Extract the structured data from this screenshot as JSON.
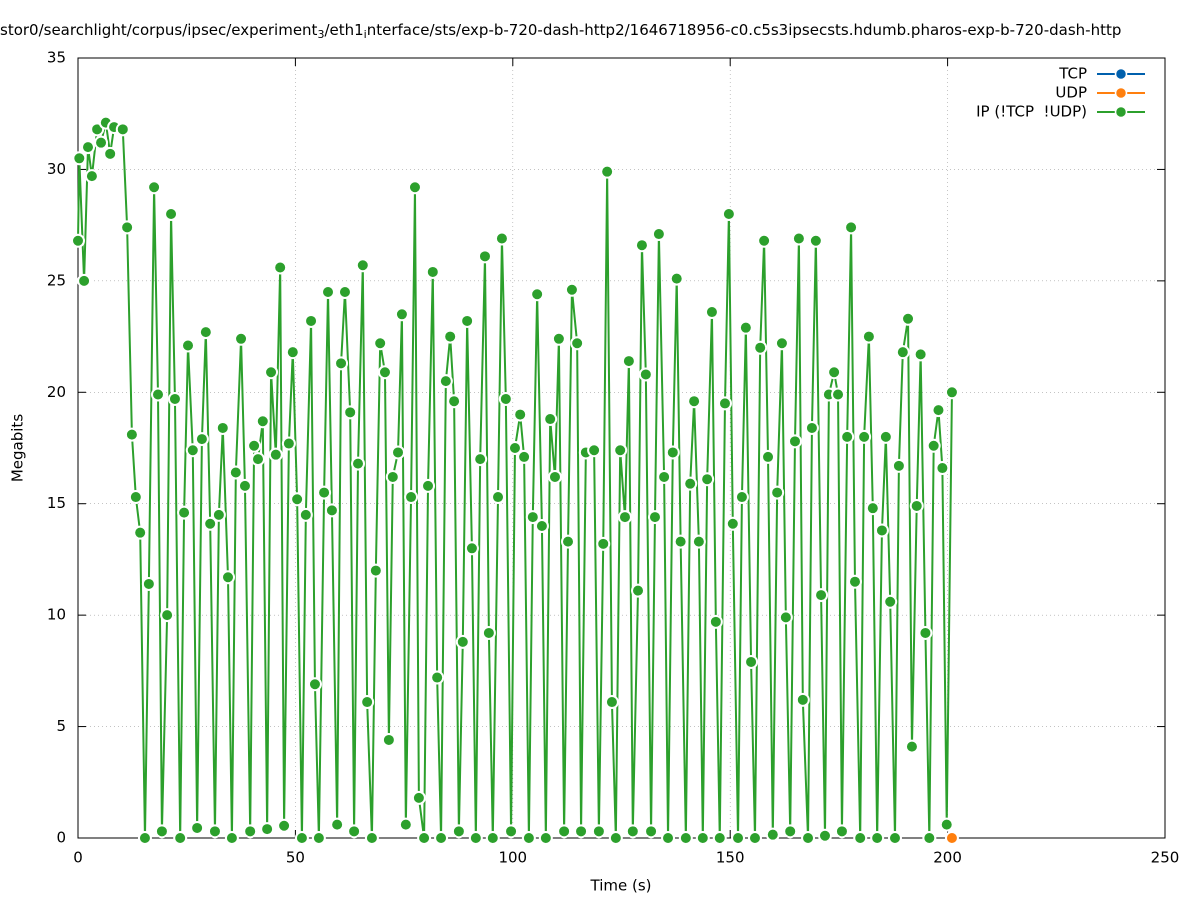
{
  "chart_data": {
    "type": "line",
    "title": [
      "stor0/searchlight/corpus/ipsec/experiment",
      "3",
      "/eth1",
      "i",
      "nterface/sts/exp-b-720-dash-http2/1646718956-c0.c5s3ipsecsts.hdumb.pharos-exp-b-720-dash-http"
    ],
    "x_label": "Time (s)",
    "y_label": "Megabits",
    "xlim": [
      0,
      250
    ],
    "xticks": [
      0,
      50,
      100,
      150,
      200,
      250
    ],
    "ylim": [
      0,
      35
    ],
    "yticks": [
      0,
      5,
      10,
      15,
      20,
      25,
      30,
      35
    ],
    "grid": true,
    "legend": "top-right",
    "series": [
      {
        "name": "TCP",
        "color": "#0060ad",
        "x": [],
        "values": []
      },
      {
        "name": "UDP",
        "color": "#ff7f0e",
        "x": [
          201.0
        ],
        "values": [
          0
        ]
      },
      {
        "name": "IP (!TCP  !UDP)",
        "color": "#2ca02c",
        "x": [
          0,
          0.3,
          1.4,
          2.3,
          3.2,
          4.4,
          5.3,
          6.4,
          7.4,
          8.3,
          10.3,
          11.3,
          12.4,
          13.3,
          14.3,
          15.4,
          16.3,
          17.5,
          18.4,
          19.3,
          20.5,
          21.4,
          22.3,
          23.5,
          24.4,
          25.3,
          26.4,
          27.4,
          28.5,
          29.4,
          30.4,
          31.5,
          32.4,
          33.3,
          34.5,
          35.4,
          36.3,
          37.5,
          38.4,
          39.6,
          40.5,
          41.4,
          42.5,
          43.5,
          44.4,
          45.5,
          46.5,
          47.4,
          48.5,
          49.4,
          50.4,
          51.5,
          52.4,
          53.6,
          54.5,
          55.4,
          56.6,
          57.5,
          58.4,
          59.6,
          60.5,
          61.4,
          62.6,
          63.5,
          64.4,
          65.5,
          66.5,
          67.6,
          68.5,
          69.5,
          70.6,
          71.5,
          72.4,
          73.6,
          74.5,
          75.4,
          76.6,
          77.5,
          78.4,
          79.6,
          80.5,
          81.6,
          82.6,
          83.5,
          84.6,
          85.6,
          86.5,
          87.6,
          88.5,
          89.5,
          90.6,
          91.5,
          92.5,
          93.6,
          94.5,
          95.4,
          96.6,
          97.5,
          98.4,
          99.6,
          100.5,
          101.7,
          102.6,
          103.7,
          104.6,
          105.6,
          106.7,
          107.6,
          108.6,
          109.7,
          110.6,
          111.8,
          112.7,
          113.6,
          114.8,
          115.7,
          116.8,
          118.7,
          119.8,
          120.8,
          121.7,
          122.8,
          123.7,
          124.7,
          125.8,
          126.7,
          127.6,
          128.8,
          129.7,
          130.6,
          131.8,
          132.7,
          133.6,
          134.8,
          135.7,
          136.8,
          137.7,
          138.6,
          139.8,
          140.8,
          141.7,
          142.8,
          143.7,
          144.7,
          145.8,
          146.7,
          147.6,
          148.8,
          149.7,
          150.6,
          151.8,
          152.7,
          153.6,
          154.8,
          155.7,
          156.9,
          157.8,
          158.7,
          159.8,
          160.8,
          161.9,
          162.8,
          163.8,
          164.9,
          165.8,
          166.7,
          167.9,
          168.8,
          169.7,
          170.9,
          171.8,
          172.7,
          173.9,
          174.8,
          175.7,
          176.9,
          177.8,
          178.7,
          179.9,
          180.8,
          181.9,
          182.8,
          183.8,
          184.9,
          185.8,
          186.8,
          187.9,
          188.8,
          189.7,
          190.9,
          191.8,
          192.9,
          193.8,
          194.9,
          195.8,
          196.8,
          197.9,
          198.8,
          199.8,
          201.0
        ],
        "values": [
          26.8,
          30.5,
          25.0,
          31.0,
          29.7,
          31.8,
          31.2,
          32.1,
          30.7,
          31.9,
          31.8,
          27.4,
          18.1,
          15.3,
          13.7,
          0,
          11.4,
          29.2,
          19.9,
          0.3,
          10.0,
          28.0,
          19.7,
          0,
          14.6,
          22.1,
          17.4,
          0.45,
          17.9,
          22.7,
          14.1,
          0.3,
          14.5,
          18.4,
          11.7,
          0,
          16.4,
          22.4,
          15.8,
          0.3,
          17.6,
          17.0,
          18.7,
          0.4,
          20.9,
          17.2,
          25.6,
          0.55,
          17.7,
          21.8,
          15.2,
          0,
          14.5,
          23.2,
          6.9,
          0,
          15.5,
          24.5,
          14.7,
          0.6,
          21.3,
          24.5,
          19.1,
          0.3,
          16.8,
          25.7,
          6.1,
          0,
          12.0,
          22.2,
          20.9,
          4.4,
          16.2,
          17.3,
          23.5,
          0.6,
          15.3,
          29.2,
          1.8,
          0,
          15.8,
          25.4,
          7.2,
          0,
          20.5,
          22.5,
          19.6,
          0.3,
          8.8,
          23.2,
          13.0,
          0,
          17.0,
          26.1,
          9.2,
          0,
          15.3,
          26.9,
          19.7,
          0.3,
          17.5,
          19.0,
          17.1,
          0,
          14.4,
          24.4,
          14.0,
          0,
          18.8,
          16.2,
          22.4,
          0.3,
          13.3,
          24.6,
          22.2,
          0.3,
          17.3,
          17.4,
          0.3,
          13.2,
          29.9,
          6.1,
          0,
          17.4,
          14.4,
          21.4,
          0.3,
          11.1,
          26.6,
          20.8,
          0.3,
          14.4,
          27.1,
          16.2,
          0,
          17.3,
          25.1,
          13.3,
          0,
          15.9,
          19.6,
          13.3,
          0,
          16.1,
          23.6,
          9.7,
          0,
          19.5,
          28.0,
          14.1,
          0,
          15.3,
          22.9,
          7.9,
          0,
          22.0,
          26.8,
          17.1,
          0.15,
          15.5,
          22.2,
          9.9,
          0.3,
          17.8,
          26.9,
          6.2,
          0,
          18.4,
          26.8,
          10.9,
          0.1,
          19.9,
          20.9,
          19.9,
          0.3,
          18.0,
          27.4,
          11.5,
          0,
          18.0,
          22.5,
          14.8,
          0,
          13.8,
          18.0,
          10.6,
          0,
          16.7,
          21.8,
          23.3,
          4.1,
          14.9,
          21.7,
          9.2,
          0,
          17.6,
          19.2,
          16.6,
          0.6,
          20.0
        ]
      }
    ]
  }
}
